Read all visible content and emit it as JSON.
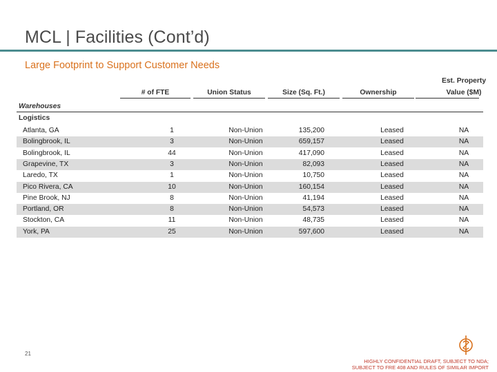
{
  "title": "MCL | Facilities (Cont’d)",
  "subtitle": "Large Footprint to Support Customer Needs",
  "columns": {
    "fte": "# of FTE",
    "union": "Union Status",
    "size": "Size (Sq. Ft.)",
    "ownership": "Ownership",
    "value_line1": "Est. Property",
    "value_line2": "Value ($M)"
  },
  "sections": {
    "warehouses": "Warehouses",
    "logistics": "Logistics"
  },
  "rows": [
    {
      "name": "Atlanta, GA",
      "fte": "1",
      "union": "Non-Union",
      "size": "135,200",
      "ownership": "Leased",
      "value": "NA"
    },
    {
      "name": "Bolingbrook, IL",
      "fte": "3",
      "union": "Non-Union",
      "size": "659,157",
      "ownership": "Leased",
      "value": "NA"
    },
    {
      "name": "Bolingbrook, IL",
      "fte": "44",
      "union": "Non-Union",
      "size": "417,090",
      "ownership": "Leased",
      "value": "NA"
    },
    {
      "name": "Grapevine, TX",
      "fte": "3",
      "union": "Non-Union",
      "size": "82,093",
      "ownership": "Leased",
      "value": "NA"
    },
    {
      "name": "Laredo, TX",
      "fte": "1",
      "union": "Non-Union",
      "size": "10,750",
      "ownership": "Leased",
      "value": "NA"
    },
    {
      "name": "Pico Rivera, CA",
      "fte": "10",
      "union": "Non-Union",
      "size": "160,154",
      "ownership": "Leased",
      "value": "NA"
    },
    {
      "name": "Pine Brook, NJ",
      "fte": "8",
      "union": "Non-Union",
      "size": "41,194",
      "ownership": "Leased",
      "value": "NA"
    },
    {
      "name": "Portland, OR",
      "fte": "8",
      "union": "Non-Union",
      "size": "54,573",
      "ownership": "Leased",
      "value": "NA"
    },
    {
      "name": "Stockton, CA",
      "fte": "11",
      "union": "Non-Union",
      "size": "48,735",
      "ownership": "Leased",
      "value": "NA"
    },
    {
      "name": "York, PA",
      "fte": "25",
      "union": "Non-Union",
      "size": "597,600",
      "ownership": "Leased",
      "value": "NA"
    }
  ],
  "page_number": "21",
  "footer": {
    "line1": "HIGHLY CONFIDENTIAL DRAFT, SUBJECT TO NDA;",
    "line2": "SUBJECT TO FRE 408 AND RULES OF SIMILAR IMPORT"
  },
  "colors": {
    "accent_rule": "#4b8c8f",
    "subtitle": "#d9711d",
    "row_shade": "#dcdcdc",
    "footer": "#c0392b"
  },
  "icons": {
    "logo": "company-logo-icon"
  }
}
